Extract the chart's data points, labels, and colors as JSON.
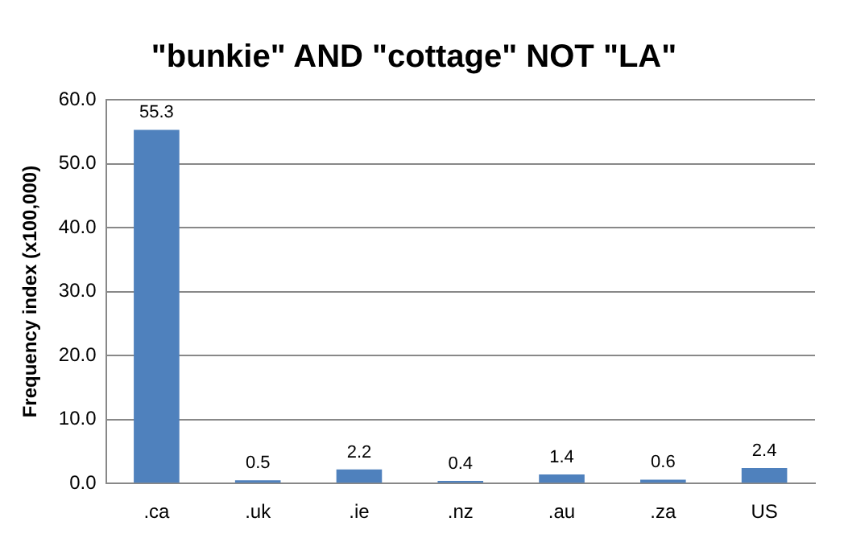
{
  "chart_data": {
    "type": "bar",
    "title": "\"bunkie\" AND \"cottage\" NOT \"LA\"",
    "ylabel": "Frequency index (x100,000)",
    "categories": [
      ".ca",
      ".uk",
      ".ie",
      ".nz",
      ".au",
      ".za",
      "US"
    ],
    "values": [
      55.3,
      0.5,
      2.2,
      0.4,
      1.4,
      0.6,
      2.4
    ],
    "color": "#4f81bd",
    "ylim": [
      0,
      60
    ],
    "yticks": [
      {
        "value": 0,
        "label": "0.0"
      },
      {
        "value": 10,
        "label": "10.0"
      },
      {
        "value": 20,
        "label": "20.0"
      },
      {
        "value": 30,
        "label": "30.0"
      },
      {
        "value": 40,
        "label": "40.0"
      },
      {
        "value": 50,
        "label": "50.0"
      },
      {
        "value": 60,
        "label": "60.0"
      }
    ],
    "grid": "y",
    "data_labels": true,
    "legend": false
  }
}
